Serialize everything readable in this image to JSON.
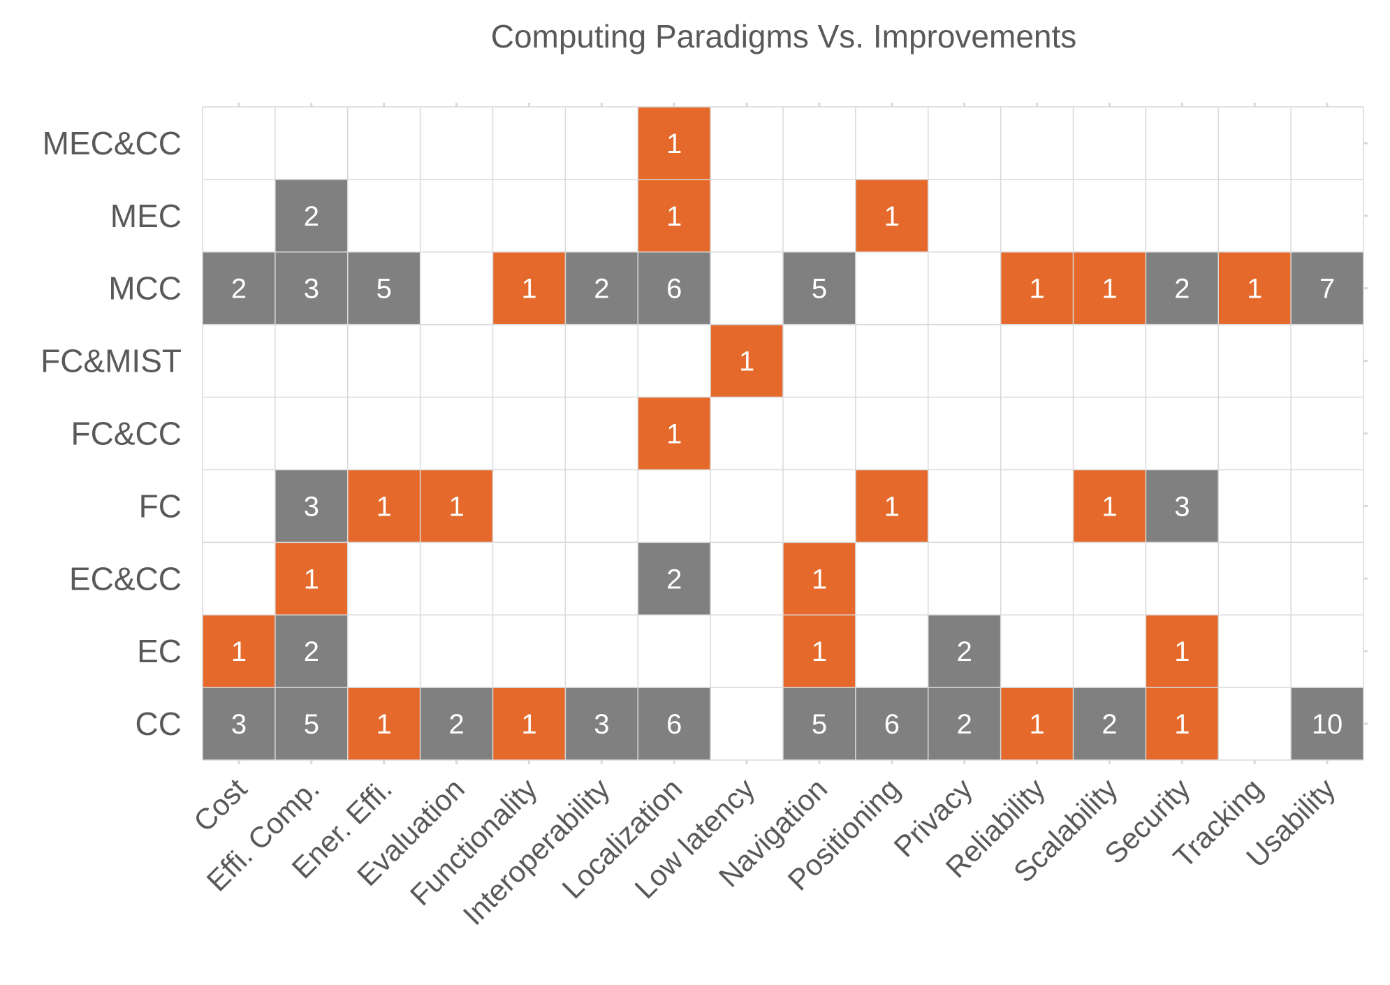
{
  "chart_data": {
    "type": "heatmap",
    "title": "Computing Paradigms Vs. Improvements",
    "xlabel": "",
    "ylabel": "",
    "x_categories": [
      "Cost",
      "Effi. Comp.",
      "Ener. Effi.",
      "Evaluation",
      "Functionality",
      "Interoperability",
      "Localization",
      "Low latency",
      "Navigation",
      "Positioning",
      "Privacy",
      "Reliability",
      "Scalability",
      "Security",
      "Tracking",
      "Usability"
    ],
    "y_categories": [
      "MEC&CC",
      "MEC",
      "MCC",
      "FC&MIST",
      "FC&CC",
      "FC",
      "EC&CC",
      "EC",
      "CC"
    ],
    "values": [
      [
        null,
        null,
        null,
        null,
        null,
        null,
        1,
        null,
        null,
        null,
        null,
        null,
        null,
        null,
        null,
        null
      ],
      [
        null,
        2,
        null,
        null,
        null,
        null,
        1,
        null,
        null,
        1,
        null,
        null,
        null,
        null,
        null,
        null
      ],
      [
        2,
        3,
        5,
        null,
        1,
        2,
        6,
        null,
        5,
        null,
        null,
        1,
        1,
        2,
        1,
        7
      ],
      [
        null,
        null,
        null,
        null,
        null,
        null,
        null,
        1,
        null,
        null,
        null,
        null,
        null,
        null,
        null,
        null
      ],
      [
        null,
        null,
        null,
        null,
        null,
        null,
        1,
        null,
        null,
        null,
        null,
        null,
        null,
        null,
        null,
        null
      ],
      [
        null,
        3,
        1,
        1,
        null,
        null,
        null,
        null,
        null,
        1,
        null,
        null,
        1,
        3,
        null,
        null
      ],
      [
        null,
        1,
        null,
        null,
        null,
        null,
        2,
        null,
        1,
        null,
        null,
        null,
        null,
        null,
        null,
        null
      ],
      [
        1,
        2,
        null,
        null,
        null,
        null,
        null,
        null,
        1,
        null,
        2,
        null,
        null,
        1,
        null,
        null
      ],
      [
        3,
        5,
        1,
        2,
        1,
        3,
        6,
        null,
        5,
        6,
        2,
        1,
        2,
        1,
        null,
        10
      ]
    ],
    "color_scale": {
      "value_1": "#E5692A",
      "value_2_plus": "#808080",
      "empty": "#FFFFFF"
    },
    "grid": true,
    "legend": "none"
  },
  "colors": {
    "grid_line": "#D9D9D9",
    "text": "#595959",
    "cell_text": "#FFFFFF"
  }
}
